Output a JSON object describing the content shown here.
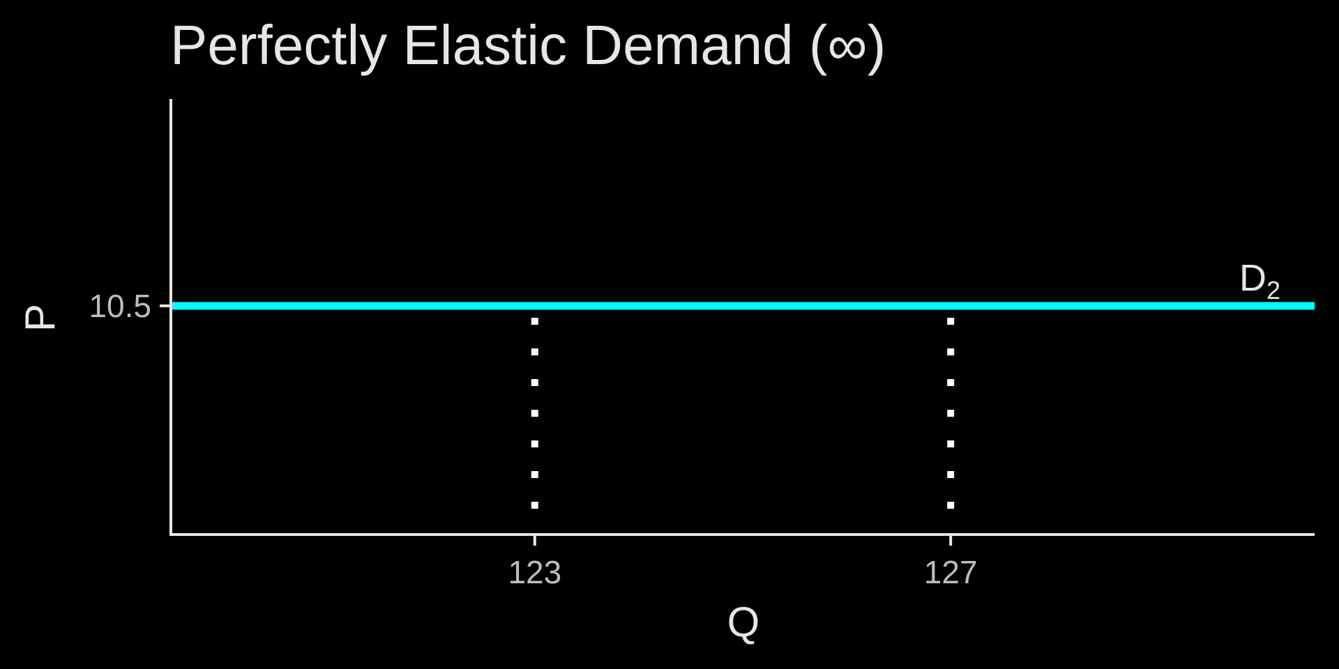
{
  "chart_data": {
    "type": "line",
    "title": "Perfectly Elastic Demand (∞)",
    "xlabel": "Q",
    "ylabel": "P",
    "xlim": [
      119.5,
      130.5
    ],
    "ylim": [
      0,
      20
    ],
    "x_ticks": [
      123,
      127
    ],
    "y_ticks": [
      10.5
    ],
    "series": [
      {
        "name": "D",
        "name_subscript": "2",
        "x": [
          119.5,
          130.5
        ],
        "y": [
          10.5,
          10.5
        ],
        "color": "#00ffff"
      }
    ],
    "reference_lines": [
      {
        "x": 123,
        "y_from": 0,
        "y_to": 10.5,
        "style": "dotted",
        "color": "#ffffff"
      },
      {
        "x": 127,
        "y_from": 0,
        "y_to": 10.5,
        "style": "dotted",
        "color": "#ffffff"
      }
    ],
    "axis_color": "#e6e6e6",
    "background": "#000000",
    "grid": false,
    "legend": "none"
  }
}
